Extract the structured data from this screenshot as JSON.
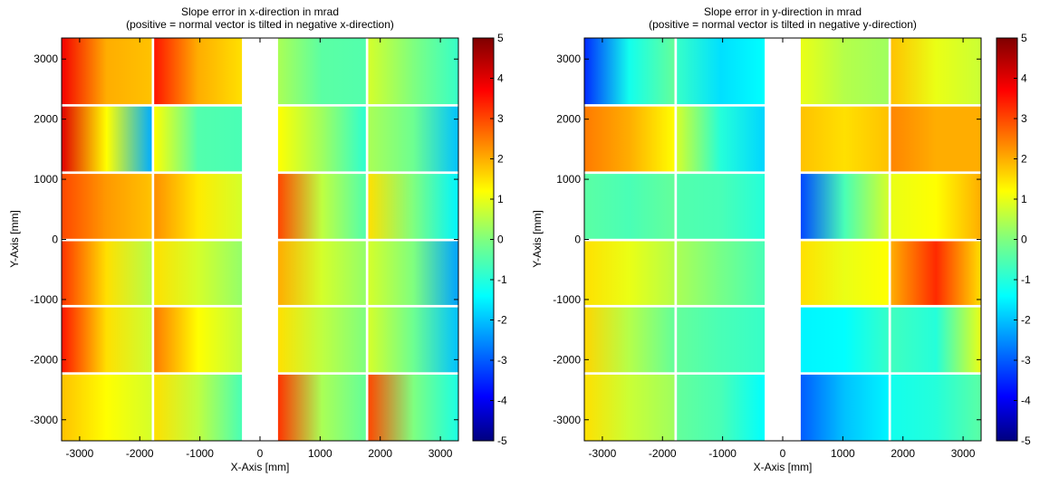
{
  "chart_data": [
    {
      "type": "heatmap",
      "title": "Slope error in x-direction in mrad",
      "subtitle": "(positive = normal vector is tilted in negative x-direction)",
      "xlabel": "X-Axis [mm]",
      "ylabel": "Y-Axis [mm]",
      "xlim": [
        -3300,
        3300
      ],
      "ylim": [
        -3350,
        3350
      ],
      "xticks": [
        "-3000",
        "-2000",
        "-1000",
        "0",
        "1000",
        "2000",
        "3000"
      ],
      "yticks": [
        "-3000",
        "-2000",
        "-1000",
        "0",
        "1000",
        "2000",
        "3000"
      ],
      "colorbar": {
        "min": -5,
        "max": 5,
        "ticks": [
          "5",
          "4",
          "3",
          "2",
          "1",
          "0",
          "-1",
          "-2",
          "-3",
          "-4",
          "-5"
        ],
        "colormap": "jet"
      },
      "grid": false,
      "facet_columns": [
        [
          -3300,
          -1800
        ],
        [
          -1760,
          -300
        ],
        [
          300,
          1760
        ],
        [
          1800,
          3300
        ]
      ],
      "facet_rows": [
        [
          2250,
          3350
        ],
        [
          1130,
          2210
        ],
        [
          10,
          1090
        ],
        [
          -1090,
          -30
        ],
        [
          -2210,
          -1130
        ],
        [
          -3350,
          -2250
        ]
      ],
      "facets": [
        [
          [
            3.8,
            2.0,
            1.8
          ],
          [
            3.5,
            2.0,
            1.5
          ],
          [
            0.4,
            -0.4,
            -0.5
          ],
          [
            0.8,
            0.0,
            -0.8
          ]
        ],
        [
          [
            4.0,
            1.2,
            -2.2
          ],
          [
            1.2,
            -0.5,
            -0.6
          ],
          [
            1.2,
            0.3,
            -0.9
          ],
          [
            0.4,
            -0.2,
            -2.0
          ]
        ],
        [
          [
            3.0,
            2.2,
            1.8
          ],
          [
            2.3,
            1.4,
            0.8
          ],
          [
            3.0,
            0.6,
            -0.5
          ],
          [
            1.5,
            0.0,
            -1.5
          ]
        ],
        [
          [
            3.2,
            1.5,
            0.5
          ],
          [
            1.5,
            0.8,
            0.2
          ],
          [
            2.0,
            0.8,
            0.2
          ],
          [
            0.8,
            0.0,
            -2.3
          ]
        ],
        [
          [
            3.5,
            1.5,
            0.7
          ],
          [
            2.5,
            1.2,
            0.6
          ],
          [
            1.5,
            0.6,
            0.0
          ],
          [
            0.8,
            -0.2,
            -2.0
          ]
        ],
        [
          [
            1.8,
            1.2,
            0.8
          ],
          [
            1.5,
            0.6,
            -0.6
          ],
          [
            3.2,
            0.4,
            -0.3
          ],
          [
            3.0,
            0.0,
            -1.1
          ]
        ]
      ]
    },
    {
      "type": "heatmap",
      "title": "Slope error in y-direction in mrad",
      "subtitle": "(positive = normal vector is tilted in negative y-direction)",
      "xlabel": "X-Axis [mm]",
      "ylabel": "Y-Axis [mm]",
      "xlim": [
        -3300,
        3300
      ],
      "ylim": [
        -3350,
        3350
      ],
      "xticks": [
        "-3000",
        "-2000",
        "-1000",
        "0",
        "1000",
        "2000",
        "3000"
      ],
      "yticks": [
        "-3000",
        "-2000",
        "-1000",
        "0",
        "1000",
        "2000",
        "3000"
      ],
      "colorbar": {
        "min": -5,
        "max": 5,
        "ticks": [
          "5",
          "4",
          "3",
          "2",
          "1",
          "0",
          "-1",
          "-2",
          "-3",
          "-4",
          "-5"
        ],
        "colormap": "jet"
      },
      "grid": false,
      "facet_columns": [
        [
          -3300,
          -1800
        ],
        [
          -1760,
          -300
        ],
        [
          300,
          1760
        ],
        [
          1800,
          3300
        ]
      ],
      "facet_rows": [
        [
          2250,
          3350
        ],
        [
          1130,
          2210
        ],
        [
          10,
          1090
        ],
        [
          -1090,
          -30
        ],
        [
          -2210,
          -1130
        ],
        [
          -3350,
          -2250
        ]
      ],
      "facets": [
        [
          [
            -3.5,
            -1.2,
            -0.3
          ],
          [
            -0.8,
            -1.7,
            -1.4
          ],
          [
            1.0,
            0.5,
            0.3
          ],
          [
            1.8,
            1.0,
            0.7
          ]
        ],
        [
          [
            2.5,
            2.0,
            1.2
          ],
          [
            0.8,
            -1.0,
            -1.8
          ],
          [
            1.8,
            1.5,
            1.8
          ],
          [
            2.4,
            2.0,
            2.0
          ]
        ],
        [
          [
            -0.4,
            -0.6,
            -0.3
          ],
          [
            -0.5,
            -0.6,
            -1.0
          ],
          [
            -3.2,
            -0.6,
            0.8
          ],
          [
            1.0,
            1.2,
            2.0
          ]
        ],
        [
          [
            1.5,
            1.0,
            0.5
          ],
          [
            0.4,
            -0.1,
            -0.6
          ],
          [
            1.5,
            1.0,
            1.2
          ],
          [
            2.0,
            3.3,
            1.5
          ]
        ],
        [
          [
            1.6,
            0.5,
            -0.3
          ],
          [
            -0.3,
            -0.6,
            -0.8
          ],
          [
            -1.5,
            -1.4,
            -0.8
          ],
          [
            -0.7,
            -1.0,
            1.0
          ]
        ],
        [
          [
            1.5,
            0.7,
            0.3
          ],
          [
            -0.3,
            -0.6,
            -1.4
          ],
          [
            -3.0,
            -2.0,
            -1.5
          ],
          [
            -1.2,
            -1.0,
            -0.4
          ]
        ]
      ]
    }
  ]
}
